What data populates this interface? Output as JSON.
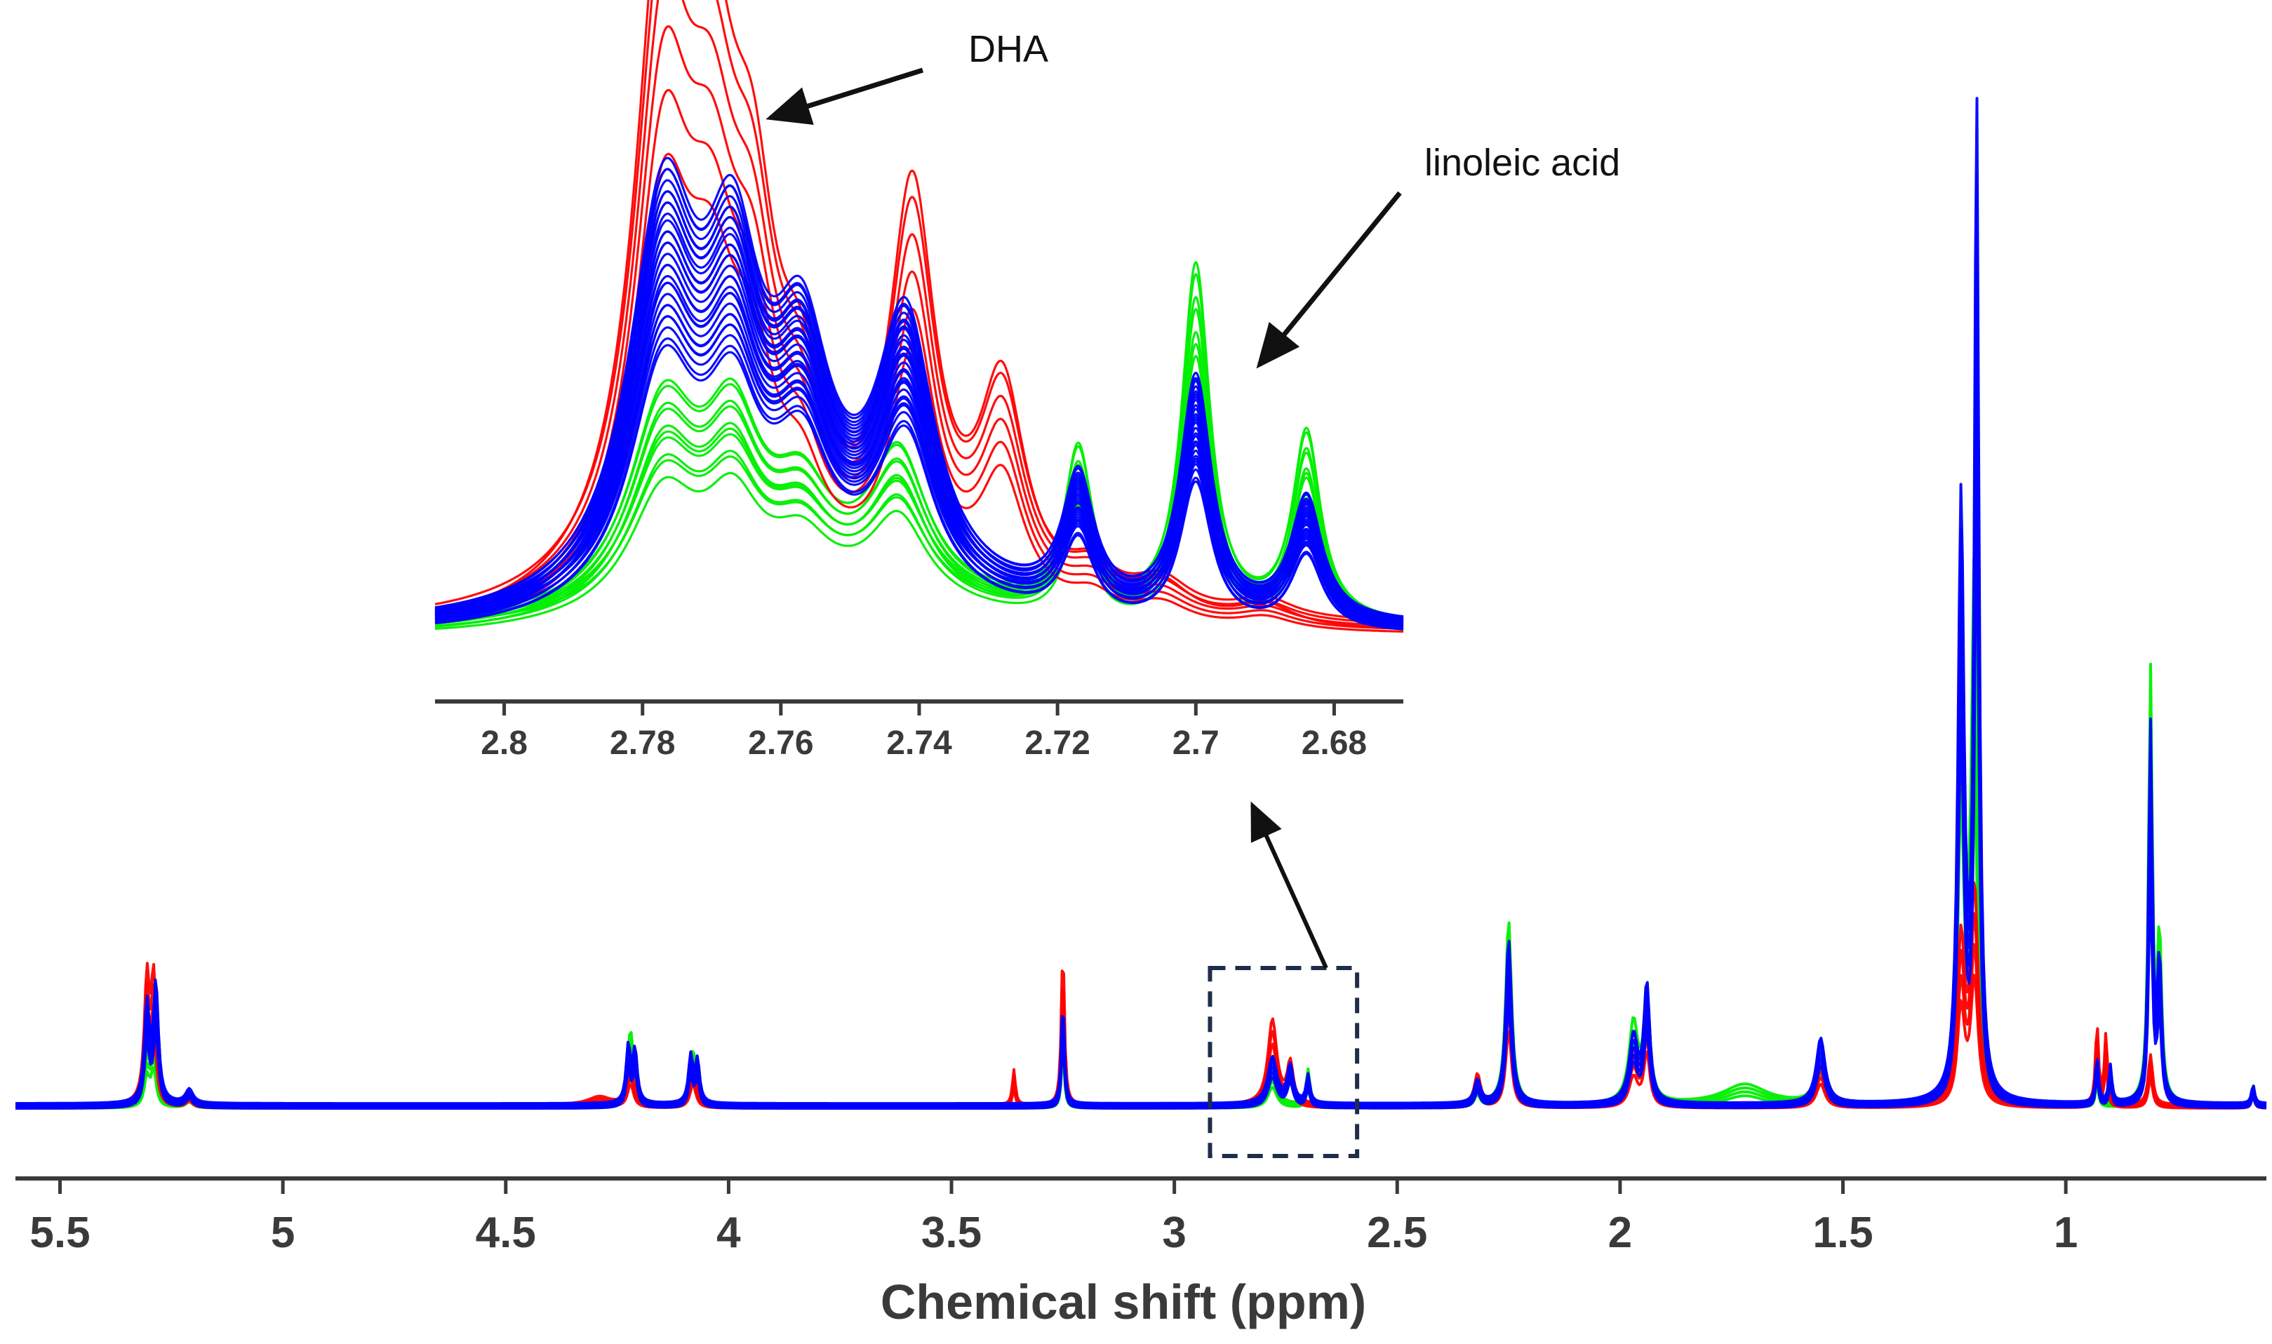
{
  "chart_data": [
    {
      "name": "main-spectrum",
      "type": "line",
      "title": "",
      "xlabel": "Chemical shift (ppm)",
      "ylabel": "",
      "x_reversed": true,
      "xlim": [
        5.6,
        0.55
      ],
      "ylim": [
        0,
        1
      ],
      "x_ticks": [
        5.5,
        5,
        4.5,
        4,
        3.5,
        3,
        2.5,
        2,
        1.5,
        1
      ],
      "x_tick_labels": [
        "5.5",
        "5",
        "4.5",
        "4",
        "3.5",
        "3",
        "2.5",
        "2",
        "1.5",
        "1"
      ],
      "grid": false,
      "series": [
        {
          "name": "red",
          "color": "#ff0000",
          "peaks": [
            {
              "x": 5.305,
              "h": 0.12,
              "w": 0.007
            },
            {
              "x": 5.29,
              "h": 0.12,
              "w": 0.007
            },
            {
              "x": 5.21,
              "h": 0.01,
              "w": 0.01
            },
            {
              "x": 4.29,
              "h": 0.008,
              "w": 0.03
            },
            {
              "x": 4.22,
              "h": 0.04,
              "w": 0.008
            },
            {
              "x": 4.08,
              "h": 0.04,
              "w": 0.008
            },
            {
              "x": 3.36,
              "h": 0.035,
              "w": 0.004
            },
            {
              "x": 3.25,
              "h": 0.16,
              "w": 0.004
            },
            {
              "x": 2.78,
              "h": 0.085,
              "w": 0.012
            },
            {
              "x": 2.74,
              "h": 0.04,
              "w": 0.008
            },
            {
              "x": 2.32,
              "h": 0.03,
              "w": 0.008
            },
            {
              "x": 2.25,
              "h": 0.13,
              "w": 0.008
            },
            {
              "x": 1.97,
              "h": 0.05,
              "w": 0.012
            },
            {
              "x": 1.94,
              "h": 0.09,
              "w": 0.008
            },
            {
              "x": 1.55,
              "h": 0.04,
              "w": 0.012
            },
            {
              "x": 1.235,
              "h": 0.16,
              "w": 0.01
            },
            {
              "x": 1.205,
              "h": 0.21,
              "w": 0.01
            },
            {
              "x": 0.93,
              "h": 0.08,
              "w": 0.004
            },
            {
              "x": 0.91,
              "h": 0.07,
              "w": 0.004
            },
            {
              "x": 0.81,
              "h": 0.05,
              "w": 0.006
            },
            {
              "x": 0.58,
              "h": 0.02,
              "w": 0.004
            }
          ]
        },
        {
          "name": "green",
          "color": "#00ee00",
          "peaks": [
            {
              "x": 5.305,
              "h": 0.05,
              "w": 0.007
            },
            {
              "x": 5.29,
              "h": 0.06,
              "w": 0.007
            },
            {
              "x": 5.21,
              "h": 0.01,
              "w": 0.01
            },
            {
              "x": 4.22,
              "h": 0.075,
              "w": 0.008
            },
            {
              "x": 4.08,
              "h": 0.055,
              "w": 0.008
            },
            {
              "x": 3.25,
              "h": 0.09,
              "w": 0.004
            },
            {
              "x": 2.78,
              "h": 0.035,
              "w": 0.012
            },
            {
              "x": 2.7,
              "h": 0.035,
              "w": 0.005
            },
            {
              "x": 2.32,
              "h": 0.02,
              "w": 0.008
            },
            {
              "x": 2.25,
              "h": 0.185,
              "w": 0.008
            },
            {
              "x": 1.97,
              "h": 0.08,
              "w": 0.012
            },
            {
              "x": 1.94,
              "h": 0.11,
              "w": 0.008
            },
            {
              "x": 1.72,
              "h": 0.02,
              "w": 0.06
            },
            {
              "x": 1.55,
              "h": 0.055,
              "w": 0.012
            },
            {
              "x": 1.235,
              "h": 0.5,
              "w": 0.008
            },
            {
              "x": 1.205,
              "h": 0.53,
              "w": 0.008
            },
            {
              "x": 0.93,
              "h": 0.04,
              "w": 0.004
            },
            {
              "x": 0.81,
              "h": 0.43,
              "w": 0.005
            },
            {
              "x": 0.79,
              "h": 0.16,
              "w": 0.006
            },
            {
              "x": 0.58,
              "h": 0.02,
              "w": 0.004
            }
          ]
        },
        {
          "name": "blue",
          "color": "#0000ff",
          "peaks": [
            {
              "x": 5.305,
              "h": 0.1,
              "w": 0.007
            },
            {
              "x": 5.285,
              "h": 0.12,
              "w": 0.007
            },
            {
              "x": 5.21,
              "h": 0.015,
              "w": 0.01
            },
            {
              "x": 4.225,
              "h": 0.06,
              "w": 0.006
            },
            {
              "x": 4.21,
              "h": 0.055,
              "w": 0.006
            },
            {
              "x": 4.085,
              "h": 0.05,
              "w": 0.006
            },
            {
              "x": 4.07,
              "h": 0.045,
              "w": 0.006
            },
            {
              "x": 3.25,
              "h": 0.11,
              "w": 0.004
            },
            {
              "x": 2.78,
              "h": 0.05,
              "w": 0.012
            },
            {
              "x": 2.74,
              "h": 0.04,
              "w": 0.008
            },
            {
              "x": 2.7,
              "h": 0.03,
              "w": 0.005
            },
            {
              "x": 2.32,
              "h": 0.025,
              "w": 0.008
            },
            {
              "x": 2.25,
              "h": 0.17,
              "w": 0.008
            },
            {
              "x": 1.97,
              "h": 0.07,
              "w": 0.012
            },
            {
              "x": 1.94,
              "h": 0.12,
              "w": 0.008
            },
            {
              "x": 1.55,
              "h": 0.07,
              "w": 0.012
            },
            {
              "x": 1.235,
              "h": 0.6,
              "w": 0.008
            },
            {
              "x": 1.2,
              "h": 1.0,
              "w": 0.006
            },
            {
              "x": 0.93,
              "h": 0.05,
              "w": 0.004
            },
            {
              "x": 0.9,
              "h": 0.04,
              "w": 0.004
            },
            {
              "x": 0.81,
              "h": 0.38,
              "w": 0.005
            },
            {
              "x": 0.79,
              "h": 0.14,
              "w": 0.006
            },
            {
              "x": 0.58,
              "h": 0.02,
              "w": 0.004
            }
          ]
        }
      ]
    },
    {
      "name": "inset-zoom",
      "type": "line",
      "title": "",
      "xlabel": "",
      "ylabel": "",
      "x_reversed": true,
      "xlim": [
        2.81,
        2.67
      ],
      "ylim": [
        0,
        1
      ],
      "x_ticks": [
        2.8,
        2.78,
        2.76,
        2.74,
        2.72,
        2.7,
        2.68
      ],
      "x_tick_labels": [
        "2.8",
        "2.78",
        "2.76",
        "2.74",
        "2.72",
        "2.7",
        "2.68"
      ],
      "grid": false,
      "zoom_region_ppm": [
        2.92,
        2.59
      ],
      "series": [
        {
          "name": "red",
          "color": "#ff0000",
          "peaks": [
            {
              "x": 2.777,
              "h": 0.88,
              "w": 0.005
            },
            {
              "x": 2.77,
              "h": 0.55,
              "w": 0.005
            },
            {
              "x": 2.764,
              "h": 0.35,
              "w": 0.004
            },
            {
              "x": 2.757,
              "h": 0.18,
              "w": 0.004
            },
            {
              "x": 2.741,
              "h": 0.56,
              "w": 0.004
            },
            {
              "x": 2.728,
              "h": 0.3,
              "w": 0.004
            },
            {
              "x": 2.715,
              "h": 0.05,
              "w": 0.004
            },
            {
              "x": 2.705,
              "h": 0.05,
              "w": 0.005
            },
            {
              "x": 2.69,
              "h": 0.03,
              "w": 0.005
            }
          ]
        },
        {
          "name": "green",
          "color": "#00ee00",
          "peaks": [
            {
              "x": 2.777,
              "h": 0.28,
              "w": 0.006
            },
            {
              "x": 2.767,
              "h": 0.22,
              "w": 0.005
            },
            {
              "x": 2.757,
              "h": 0.12,
              "w": 0.005
            },
            {
              "x": 2.743,
              "h": 0.2,
              "w": 0.005
            },
            {
              "x": 2.717,
              "h": 0.24,
              "w": 0.0025
            },
            {
              "x": 2.7,
              "h": 0.52,
              "w": 0.0025
            },
            {
              "x": 2.684,
              "h": 0.28,
              "w": 0.0025
            }
          ]
        },
        {
          "name": "blue",
          "color": "#0000ff",
          "peaks": [
            {
              "x": 2.777,
              "h": 0.55,
              "w": 0.006
            },
            {
              "x": 2.767,
              "h": 0.4,
              "w": 0.005
            },
            {
              "x": 2.757,
              "h": 0.3,
              "w": 0.005
            },
            {
              "x": 2.742,
              "h": 0.38,
              "w": 0.005
            },
            {
              "x": 2.717,
              "h": 0.19,
              "w": 0.0028
            },
            {
              "x": 2.7,
              "h": 0.35,
              "w": 0.0028
            },
            {
              "x": 2.684,
              "h": 0.18,
              "w": 0.0028
            }
          ]
        }
      ]
    }
  ],
  "annotations": {
    "dha": "DHA",
    "linoleic": "linoleic acid"
  },
  "colors": {
    "red": "#ff0000",
    "green": "#00ee00",
    "blue": "#0000ff",
    "axis": "#3a3a3a",
    "zoom_box": "#1f2d4a",
    "arrow": "#111111"
  }
}
